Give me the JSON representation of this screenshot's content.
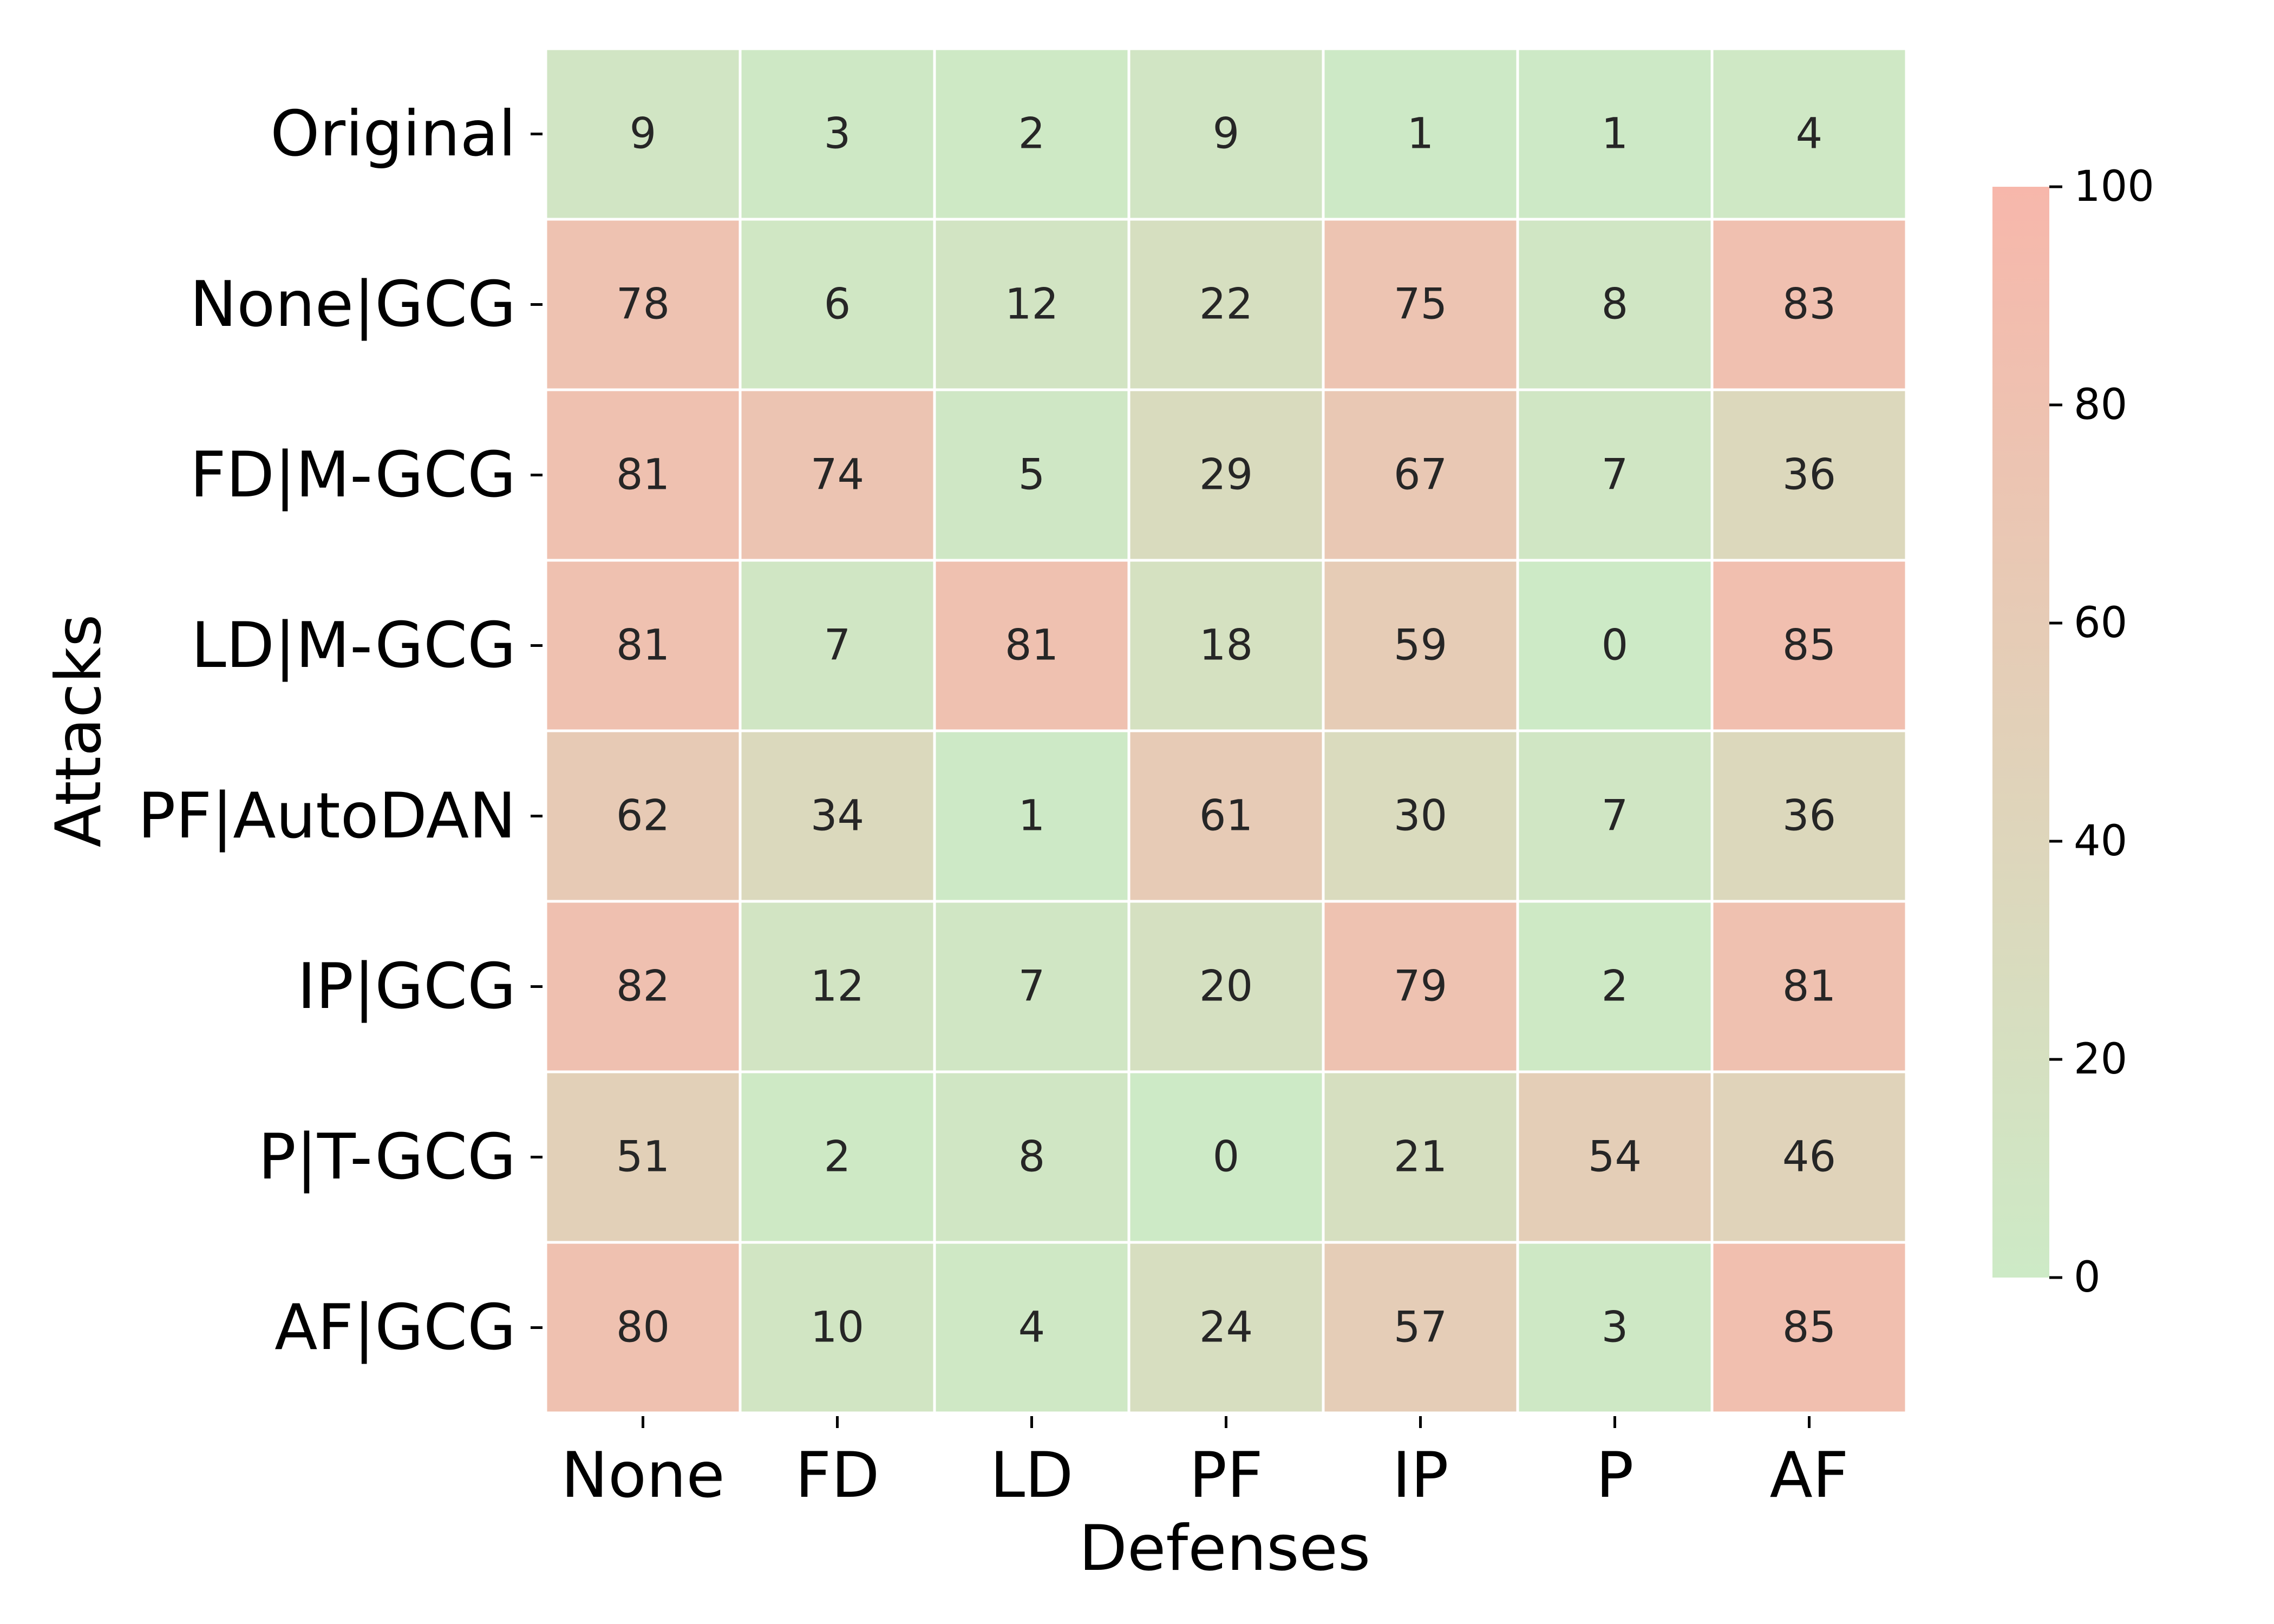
{
  "chart_data": {
    "type": "heatmap",
    "xlabel": "Defenses",
    "ylabel": "Attacks",
    "x_categories": [
      "None",
      "FD",
      "LD",
      "PF",
      "IP",
      "P",
      "AF"
    ],
    "y_categories": [
      "Original",
      "None|GCG",
      "FD|M-GCG",
      "LD|M-GCG",
      "PF|AutoDAN",
      "IP|GCG",
      "P|T-GCG",
      "AF|GCG"
    ],
    "values": [
      [
        9,
        3,
        2,
        9,
        1,
        1,
        4
      ],
      [
        78,
        6,
        12,
        22,
        75,
        8,
        83
      ],
      [
        81,
        74,
        5,
        29,
        67,
        7,
        36
      ],
      [
        81,
        7,
        81,
        18,
        59,
        0,
        85
      ],
      [
        62,
        34,
        1,
        61,
        30,
        7,
        36
      ],
      [
        82,
        12,
        7,
        20,
        79,
        2,
        81
      ],
      [
        51,
        2,
        8,
        0,
        21,
        54,
        46
      ],
      [
        80,
        10,
        4,
        24,
        57,
        3,
        85
      ]
    ],
    "colorbar": {
      "min": 0,
      "max": 100,
      "ticks": [
        0,
        20,
        40,
        60,
        80,
        100
      ],
      "low_color": "#cdeac6",
      "high_color": "#f7b7ab"
    }
  }
}
